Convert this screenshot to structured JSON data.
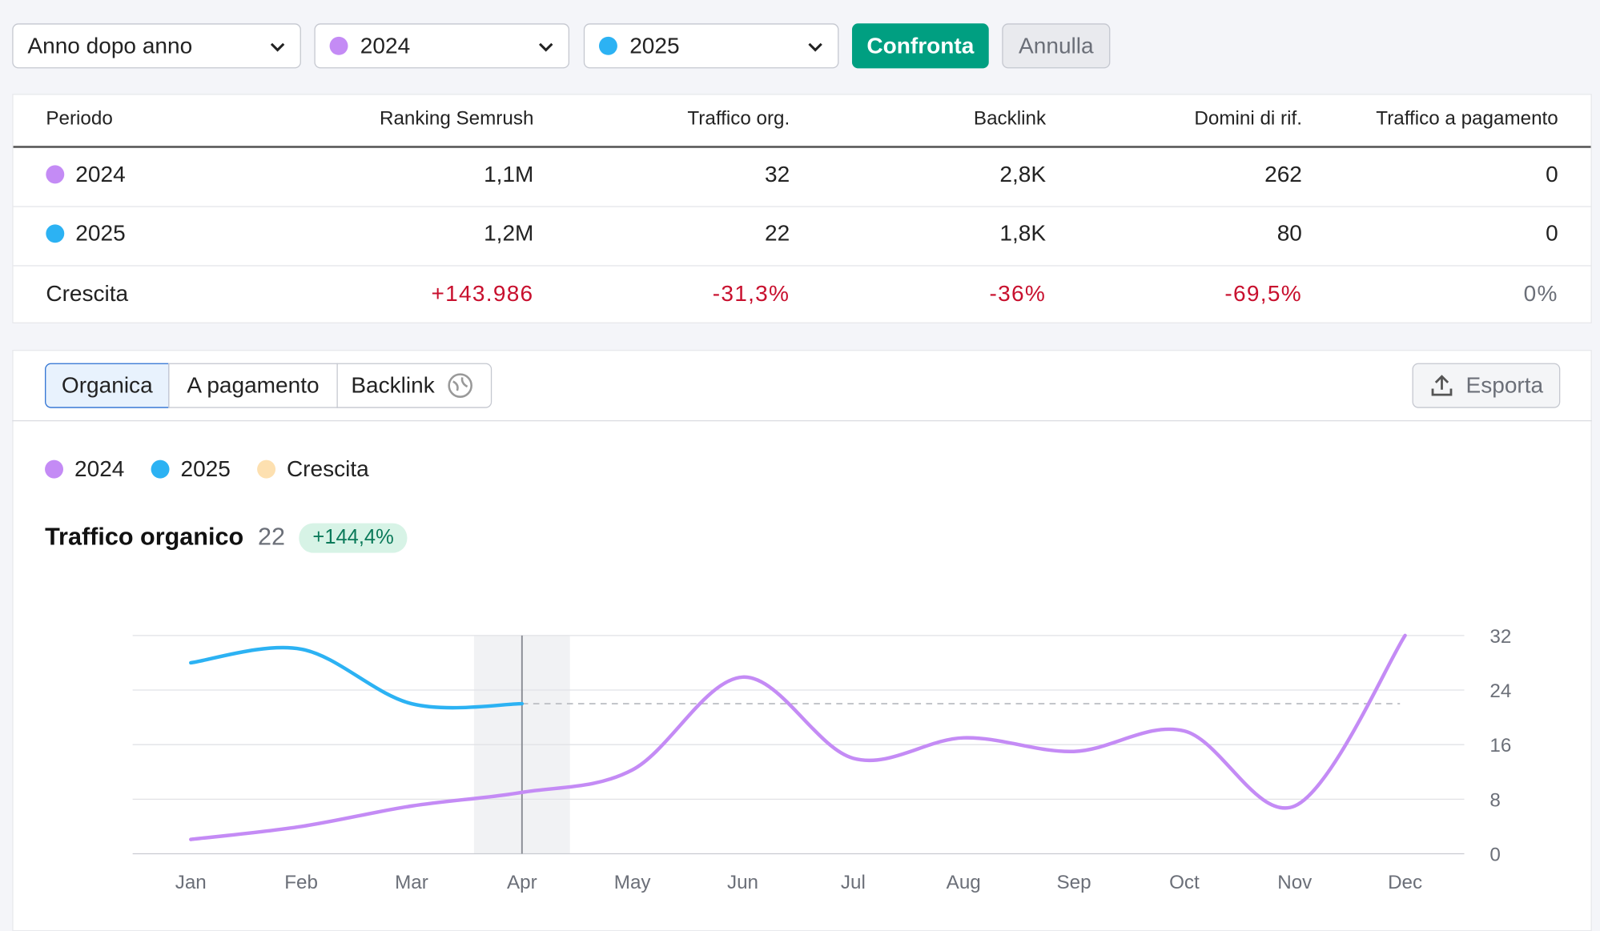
{
  "controls": {
    "mode": "Anno dopo anno",
    "period_a": "2024",
    "period_b": "2025",
    "compare": "Confronta",
    "cancel": "Annulla"
  },
  "table": {
    "header": [
      "Periodo",
      "Ranking Semrush",
      "Traffico org.",
      "Backlink",
      "Domini di rif.",
      "Traffico a pagamento"
    ],
    "rows": [
      [
        "2024",
        "1,1M",
        "32",
        "2,8K",
        "262",
        "0"
      ],
      [
        "2025",
        "1,2M",
        "22",
        "1,8K",
        "80",
        "0"
      ],
      [
        "Crescita",
        "+143.986",
        "-31,3%",
        "-36%",
        "-69,5%",
        "0%"
      ]
    ]
  },
  "tabs": [
    "Organica",
    "A pagamento",
    "Backlink"
  ],
  "export": "Esporta",
  "chart_data": {
    "type": "line",
    "title": "Traffico organico",
    "headline_value": 22,
    "headline_change": "+144,4%",
    "categories": [
      "Jan",
      "Feb",
      "Mar",
      "Apr",
      "May",
      "Jun",
      "Jul",
      "Aug",
      "Sep",
      "Oct",
      "Nov",
      "Dec"
    ],
    "series": [
      {
        "name": "2024",
        "color": "#c48bf5",
        "values": [
          2.1,
          4,
          7,
          9,
          12.3,
          25.9,
          14,
          17,
          15,
          18,
          7,
          32
        ]
      },
      {
        "name": "2025",
        "color": "#2cb2f3",
        "values": [
          28,
          30,
          22,
          22,
          null,
          null,
          null,
          null,
          null,
          null,
          null,
          null
        ]
      },
      {
        "name": "Crescita",
        "color": "#fde0b0",
        "values": [
          null,
          null,
          null,
          null,
          null,
          null,
          null,
          null,
          null,
          null,
          null,
          null
        ]
      }
    ],
    "ylim": [
      0,
      32
    ],
    "yticks": [
      0,
      8,
      16,
      24,
      32
    ],
    "grid": true,
    "highlight_index": 3
  }
}
